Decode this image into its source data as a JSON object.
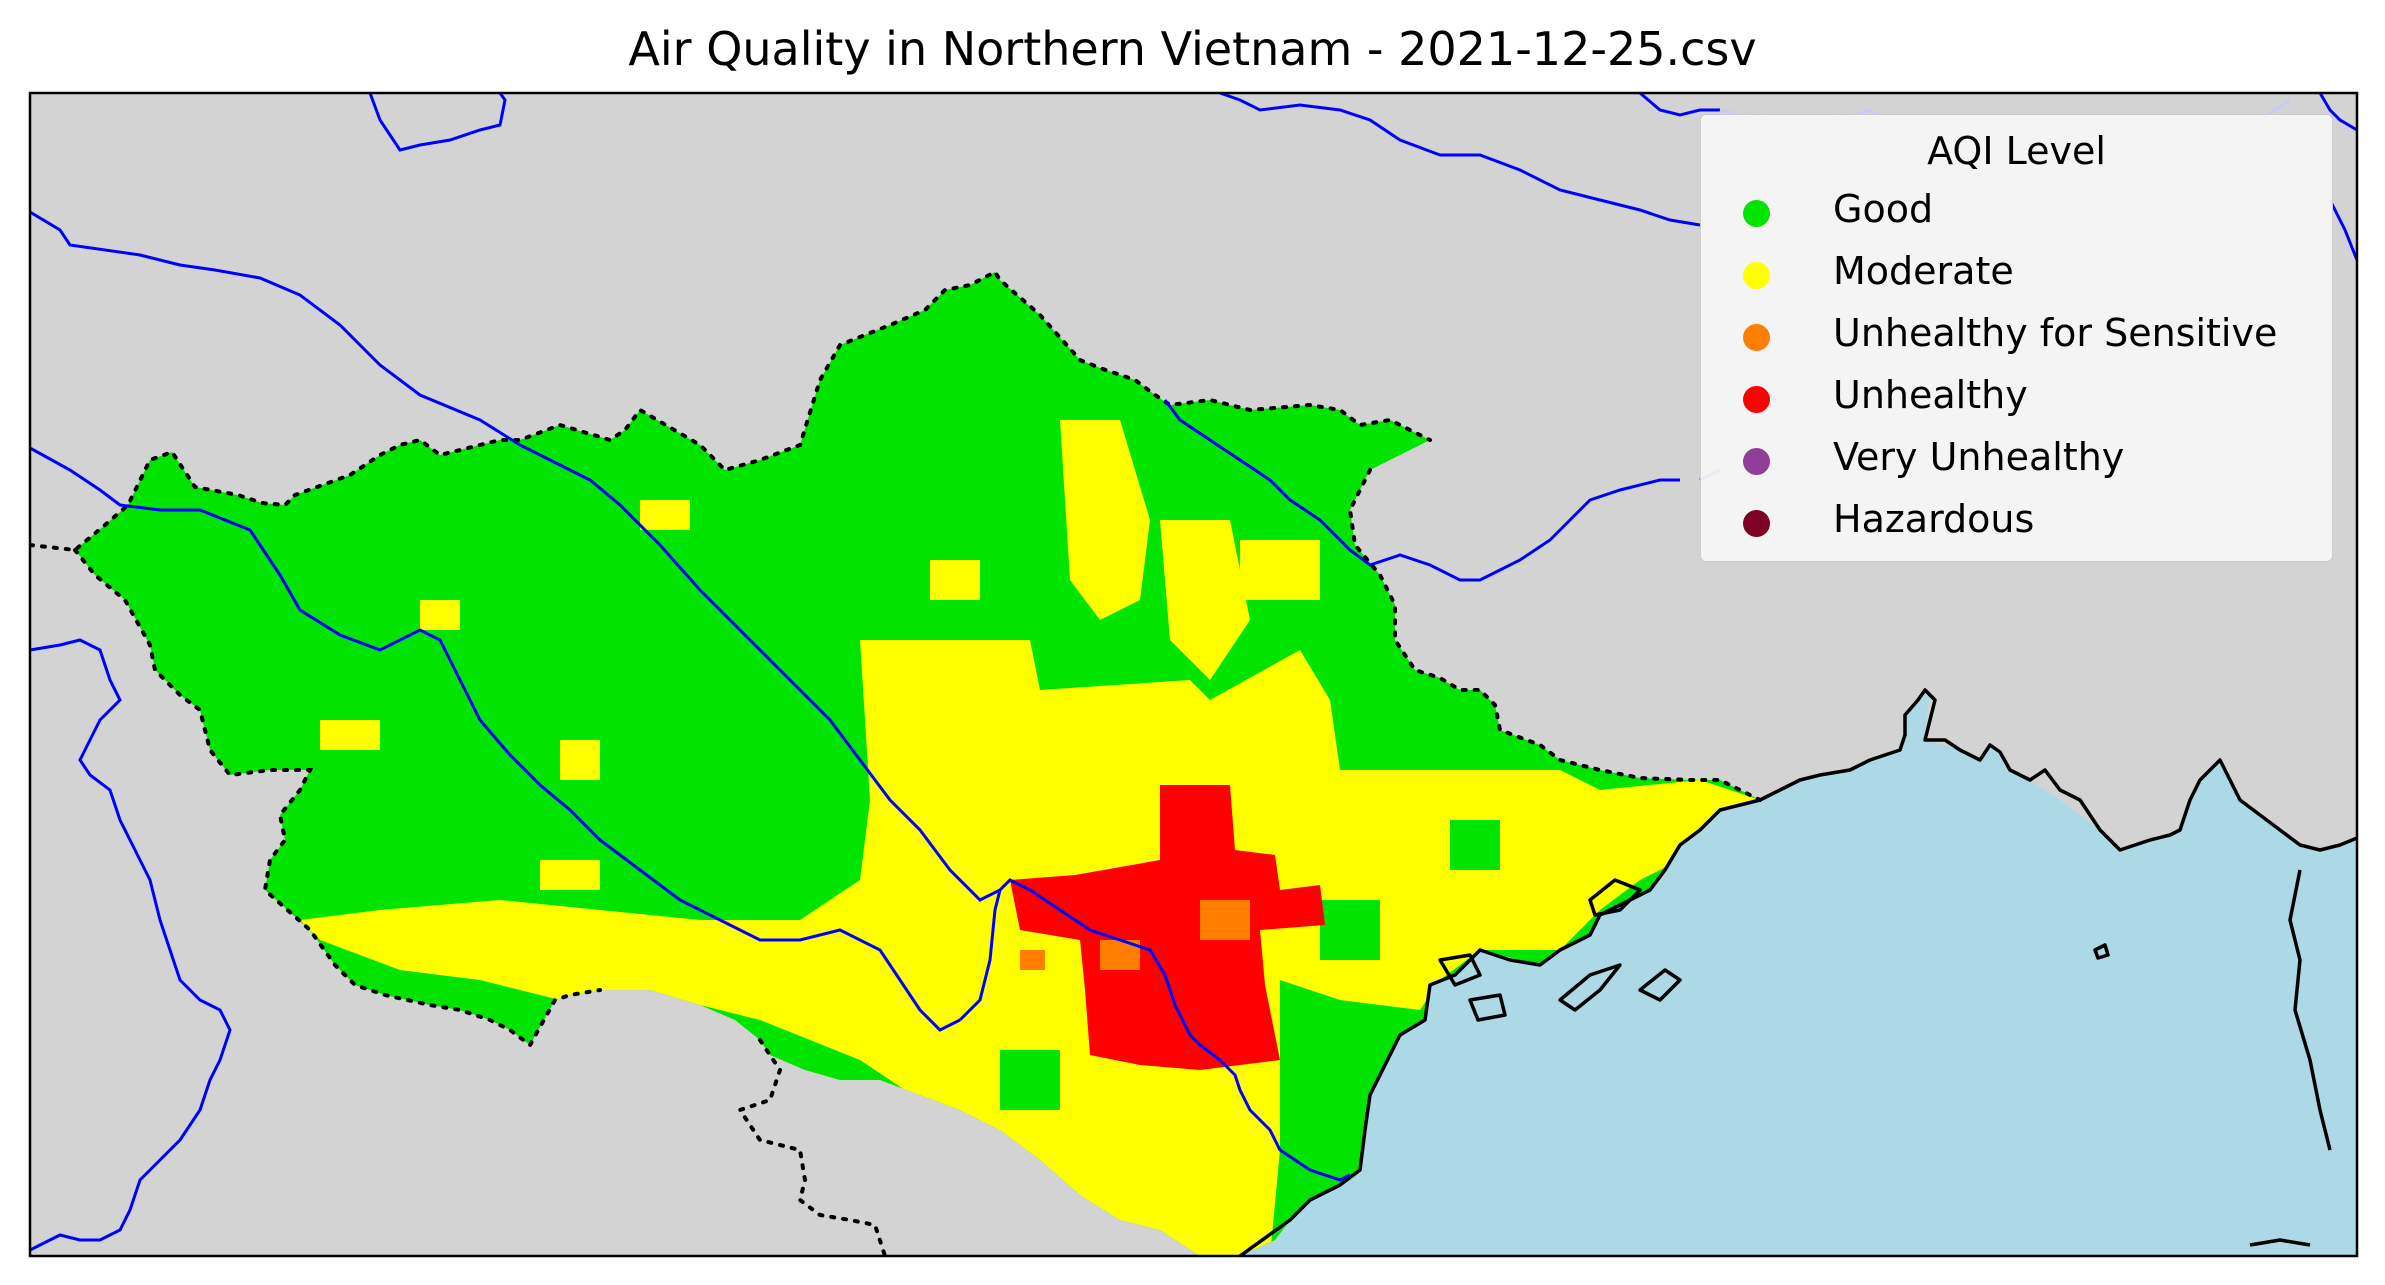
{
  "title": "Air Quality in Northern Vietnam - 2021-12-25.csv",
  "colors": {
    "land": "#d3d3d3",
    "sea": "#add8e6",
    "rivers": "#0000ff",
    "border": "#000000",
    "good": "#00e400",
    "moderate": "#ffff00",
    "usg": "#ff7e00",
    "unhealthy": "#ff0000",
    "very_unhealthy": "#8f3f97",
    "hazardous": "#7e0023"
  },
  "legend": {
    "title": "AQI Level",
    "items": [
      {
        "label": "Good",
        "color": "#00e400"
      },
      {
        "label": "Moderate",
        "color": "#ffff00"
      },
      {
        "label": "Unhealthy for Sensitive",
        "color": "#ff7e00"
      },
      {
        "label": "Unhealthy",
        "color": "#ff0000"
      },
      {
        "label": "Very Unhealthy",
        "color": "#8f3f97"
      },
      {
        "label": "Hazardous",
        "color": "#7e0023"
      }
    ]
  }
}
